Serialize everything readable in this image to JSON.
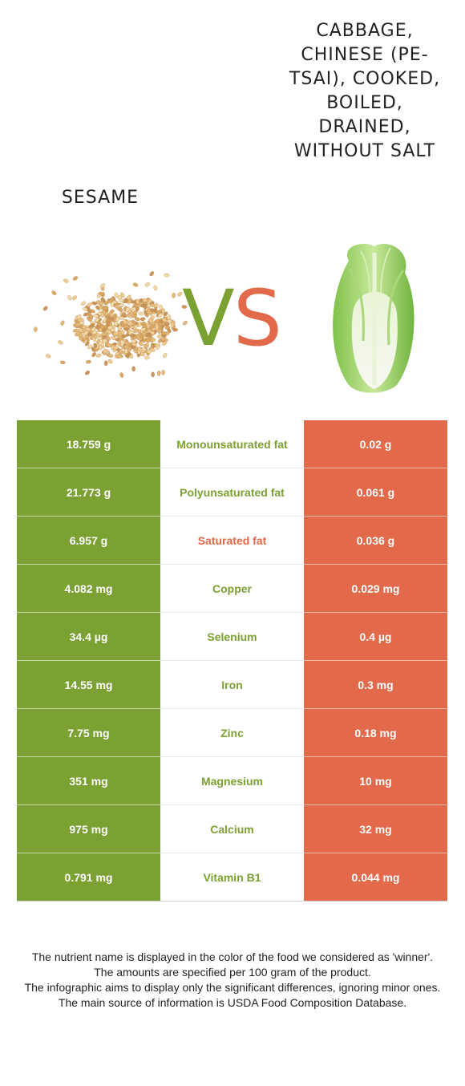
{
  "foods": {
    "left": {
      "name": "Sesame",
      "color": "#7aa132"
    },
    "right": {
      "name": "Cabbage, chinese (pe-tsai), cooked, boiled, drained, without salt",
      "color": "#e2694a"
    }
  },
  "vs_logo": {
    "v": "V",
    "s": "S"
  },
  "nutrients": [
    {
      "name": "Monounsaturated fat",
      "left": "18.759 g",
      "right": "0.02 g",
      "winner": "left"
    },
    {
      "name": "Polyunsaturated fat",
      "left": "21.773 g",
      "right": "0.061 g",
      "winner": "left"
    },
    {
      "name": "Saturated fat",
      "left": "6.957 g",
      "right": "0.036 g",
      "winner": "right"
    },
    {
      "name": "Copper",
      "left": "4.082 mg",
      "right": "0.029 mg",
      "winner": "left"
    },
    {
      "name": "Selenium",
      "left": "34.4 µg",
      "right": "0.4 µg",
      "winner": "left"
    },
    {
      "name": "Iron",
      "left": "14.55 mg",
      "right": "0.3 mg",
      "winner": "left"
    },
    {
      "name": "Zinc",
      "left": "7.75 mg",
      "right": "0.18 mg",
      "winner": "left"
    },
    {
      "name": "Magnesium",
      "left": "351 mg",
      "right": "10 mg",
      "winner": "left"
    },
    {
      "name": "Calcium",
      "left": "975 mg",
      "right": "32 mg",
      "winner": "left"
    },
    {
      "name": "Vitamin B1",
      "left": "0.791 mg",
      "right": "0.044 mg",
      "winner": "left"
    }
  ],
  "footnote": [
    "The nutrient name is displayed in the color of the food we considered as 'winner'.",
    "The amounts are specified per 100 gram of the product.",
    "The infographic aims to display only the significant differences, ignoring minor ones.",
    "The main source of information is USDA Food Composition Database."
  ]
}
